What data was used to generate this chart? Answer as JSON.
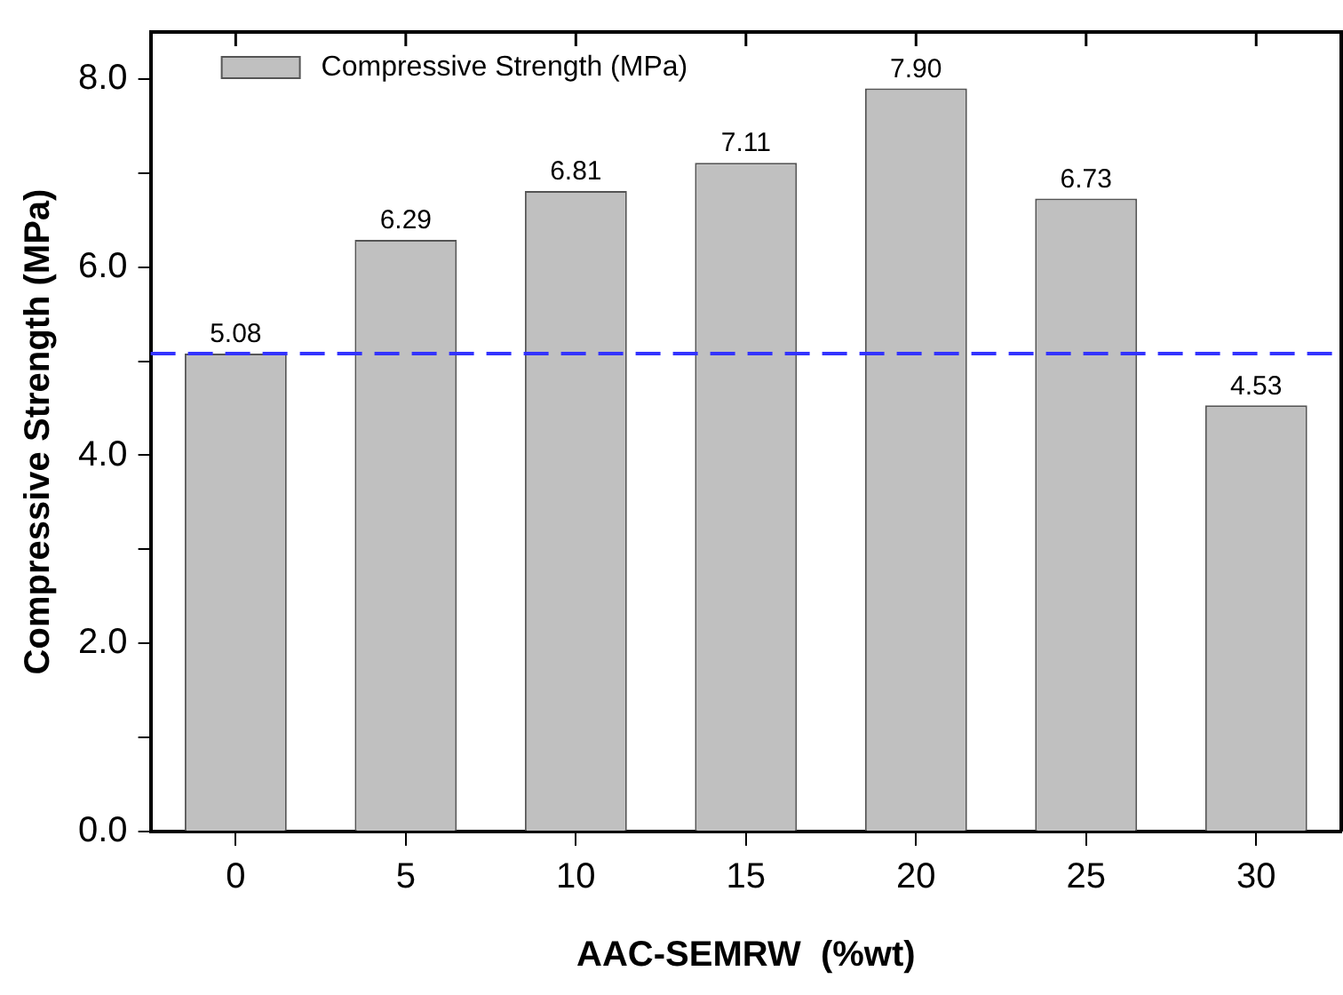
{
  "chart_data": {
    "type": "bar",
    "xlabel": "AAC-SEMRW  (%wt)",
    "ylabel": "Compressive Strength (MPa)",
    "categories": [
      "0",
      "5",
      "10",
      "15",
      "20",
      "25",
      "30"
    ],
    "series": [
      {
        "name": "Compressive Strength (MPa)",
        "color": "#c0c0c0",
        "values": [
          5.08,
          6.29,
          6.81,
          7.11,
          7.9,
          6.73,
          4.53
        ],
        "value_labels": [
          "5.08",
          "6.29",
          "6.81",
          "7.11",
          "7.90",
          "6.73",
          "4.53"
        ]
      }
    ],
    "ylim": [
      0,
      8.5
    ],
    "yticks": [
      {
        "value": 0,
        "label": "0.0"
      },
      {
        "value": 1,
        "label": null
      },
      {
        "value": 2,
        "label": "2.0"
      },
      {
        "value": 3,
        "label": null
      },
      {
        "value": 4,
        "label": "4.0"
      },
      {
        "value": 5,
        "label": null
      },
      {
        "value": 6,
        "label": "6.0"
      },
      {
        "value": 7,
        "label": null
      },
      {
        "value": 8,
        "label": "8.0"
      }
    ],
    "ref_lines": [
      {
        "axis": "y",
        "value": 5.08,
        "color": "#3333ff",
        "line_style": "dashed"
      }
    ],
    "grid": false,
    "legend": "top left"
  }
}
